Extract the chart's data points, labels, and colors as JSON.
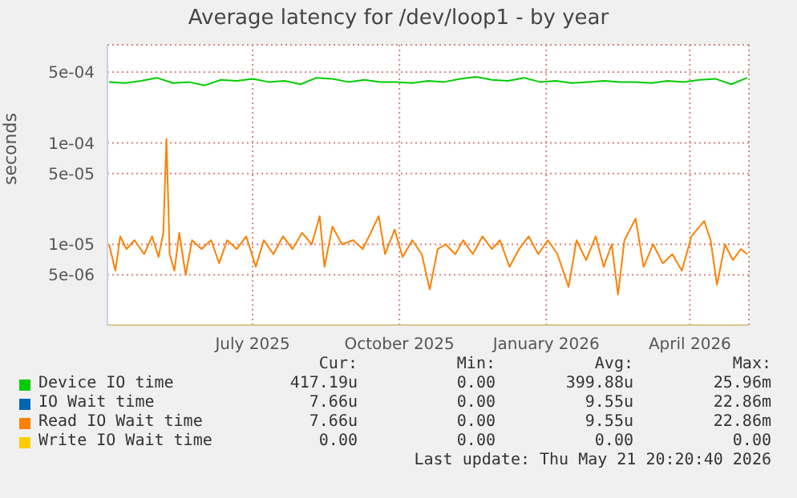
{
  "chart_data": {
    "type": "line",
    "title": "Average latency for /dev/loop1 - by year",
    "ylabel": "seconds",
    "log": "y",
    "grid": true,
    "legend": "bottom",
    "marker": "none",
    "line_style": "solid",
    "xlim": [
      "2025-04-01",
      "2026-05-08"
    ],
    "xticks": [
      {
        "value": "2025-07-01",
        "label": "July 2025"
      },
      {
        "value": "2025-10-01",
        "label": "October 2025"
      },
      {
        "value": "2026-01-01",
        "label": "January 2026"
      },
      {
        "value": "2026-04-01",
        "label": "April 2026"
      }
    ],
    "ylim": [
      1.6e-06,
      0.00093
    ],
    "yticks": [
      {
        "value": 0.0005,
        "label": "5e-04"
      },
      {
        "value": 0.0001,
        "label": "1e-04"
      },
      {
        "value": 5e-05,
        "label": "5e-05"
      },
      {
        "value": 1e-05,
        "label": "1e-05"
      },
      {
        "value": 5e-06,
        "label": "5e-06"
      }
    ],
    "series": [
      {
        "name": "Device IO time",
        "color": "#00cc00",
        "x": [
          "2025-04-02",
          "2025-04-12",
          "2025-04-22",
          "2025-05-02",
          "2025-05-12",
          "2025-05-22",
          "2025-06-01",
          "2025-06-11",
          "2025-06-21",
          "2025-07-01",
          "2025-07-11",
          "2025-07-21",
          "2025-07-31",
          "2025-08-10",
          "2025-08-20",
          "2025-08-30",
          "2025-09-09",
          "2025-09-19",
          "2025-09-29",
          "2025-10-09",
          "2025-10-19",
          "2025-10-29",
          "2025-11-08",
          "2025-11-18",
          "2025-11-28",
          "2025-12-08",
          "2025-12-18",
          "2025-12-28",
          "2026-01-07",
          "2026-01-17",
          "2026-01-27",
          "2026-02-06",
          "2026-02-16",
          "2026-02-26",
          "2026-03-08",
          "2026-03-18",
          "2026-03-28",
          "2026-04-07",
          "2026-04-17",
          "2026-04-27",
          "2026-05-07"
        ],
        "values": [
          0.0004,
          0.00039,
          0.00041,
          0.00044,
          0.00039,
          0.0004,
          0.00037,
          0.00042,
          0.00041,
          0.00043,
          0.0004,
          0.00041,
          0.00038,
          0.00044,
          0.00043,
          0.0004,
          0.00042,
          0.0004,
          0.0004,
          0.00039,
          0.00041,
          0.0004,
          0.00043,
          0.00045,
          0.00042,
          0.00041,
          0.00044,
          0.0004,
          0.00041,
          0.00039,
          0.0004,
          0.00041,
          0.0004,
          0.0004,
          0.00039,
          0.00041,
          0.0004,
          0.00042,
          0.00043,
          0.00038,
          0.00044
        ]
      },
      {
        "name": "IO Wait time",
        "color": "#0066b3"
      },
      {
        "name": "Read IO Wait time",
        "color": "#ff8000",
        "x": [
          "2025-04-02",
          "2025-04-06",
          "2025-04-09",
          "2025-04-13",
          "2025-04-18",
          "2025-04-24",
          "2025-04-29",
          "2025-05-03",
          "2025-05-06",
          "2025-05-08",
          "2025-05-10",
          "2025-05-13",
          "2025-05-16",
          "2025-05-20",
          "2025-05-24",
          "2025-05-30",
          "2025-06-05",
          "2025-06-10",
          "2025-06-15",
          "2025-06-21",
          "2025-06-27",
          "2025-07-03",
          "2025-07-08",
          "2025-07-14",
          "2025-07-20",
          "2025-07-26",
          "2025-08-01",
          "2025-08-07",
          "2025-08-12",
          "2025-08-15",
          "2025-08-20",
          "2025-08-26",
          "2025-09-02",
          "2025-09-08",
          "2025-09-13",
          "2025-09-18",
          "2025-09-22",
          "2025-09-28",
          "2025-10-03",
          "2025-10-09",
          "2025-10-15",
          "2025-10-20",
          "2025-10-25",
          "2025-10-30",
          "2025-11-05",
          "2025-11-10",
          "2025-11-16",
          "2025-11-22",
          "2025-11-28",
          "2025-12-03",
          "2025-12-09",
          "2025-12-15",
          "2025-12-21",
          "2025-12-27",
          "2026-01-02",
          "2026-01-08",
          "2026-01-15",
          "2026-01-20",
          "2026-01-26",
          "2026-02-01",
          "2026-02-06",
          "2026-02-11",
          "2026-02-15",
          "2026-02-19",
          "2026-02-26",
          "2026-03-03",
          "2026-03-09",
          "2026-03-15",
          "2026-03-21",
          "2026-03-27",
          "2026-04-02",
          "2026-04-10",
          "2026-04-14",
          "2026-04-18",
          "2026-04-23",
          "2026-04-28",
          "2026-05-03",
          "2026-05-07"
        ],
        "values": [
          1e-05,
          5.5e-06,
          1.2e-05,
          9e-06,
          1.1e-05,
          8e-06,
          1.2e-05,
          7.5e-06,
          1.3e-05,
          0.00011,
          8e-06,
          5.5e-06,
          1.3e-05,
          5e-06,
          1.1e-05,
          9e-06,
          1.1e-05,
          6.5e-06,
          1.1e-05,
          9e-06,
          1.2e-05,
          6e-06,
          1.1e-05,
          8e-06,
          1.2e-05,
          9e-06,
          1.3e-05,
          1e-05,
          1.9e-05,
          6e-06,
          1.5e-05,
          1e-05,
          1.1e-05,
          9e-06,
          1.3e-05,
          1.9e-05,
          8e-06,
          1.4e-05,
          7.5e-06,
          1.1e-05,
          8e-06,
          3.6e-06,
          9e-06,
          1e-05,
          8e-06,
          1.1e-05,
          8e-06,
          1.2e-05,
          9e-06,
          1.1e-05,
          6e-06,
          9e-06,
          1.2e-05,
          8e-06,
          1.1e-05,
          8e-06,
          3.8e-06,
          1.1e-05,
          7e-06,
          1.2e-05,
          6e-06,
          1e-05,
          3.2e-06,
          1.1e-05,
          1.8e-05,
          6e-06,
          1e-05,
          6.5e-06,
          8e-06,
          5.5e-06,
          1.2e-05,
          1.7e-05,
          1.1e-05,
          4e-06,
          1e-05,
          7e-06,
          9e-06,
          8e-06
        ]
      },
      {
        "name": "Write IO Wait time",
        "color": "#ffcc00"
      }
    ],
    "annotations": [
      "Cur:",
      "Min:",
      "Avg:",
      "Max:",
      "417.19u",
      "0.00",
      "399.88u",
      "25.96m",
      "7.66u",
      "0.00",
      "9.55u",
      "22.86m",
      "7.66u",
      "0.00",
      "9.55u",
      "22.86m",
      "0.00",
      "0.00",
      "0.00",
      "0.00",
      "Last update: Thu May 21 20:20:40 2026"
    ]
  }
}
